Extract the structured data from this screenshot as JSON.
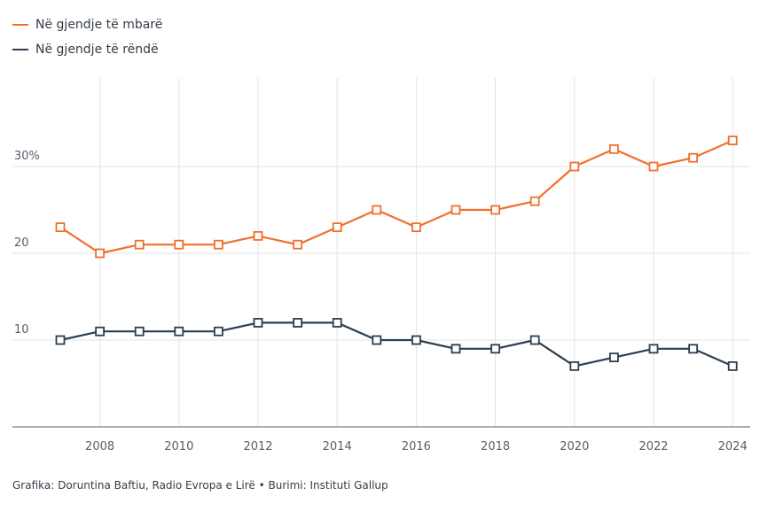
{
  "legend": {
    "items": [
      {
        "label": "Në gjendje të mbarë",
        "color": "#f26f2a"
      },
      {
        "label": "Në gjendje të rëndë",
        "color": "#2d3e4f"
      }
    ]
  },
  "footer": {
    "credit": "Grafika: Doruntina Baftiu, Radio Evropa e Lirë • Burimi: Instituti Gallup"
  },
  "chart_data": {
    "type": "line",
    "title": "",
    "xlabel": "",
    "ylabel": "",
    "x": [
      2007,
      2008,
      2009,
      2010,
      2011,
      2012,
      2013,
      2014,
      2015,
      2016,
      2017,
      2018,
      2019,
      2020,
      2021,
      2022,
      2023,
      2024
    ],
    "xticks": [
      2008,
      2010,
      2012,
      2014,
      2016,
      2018,
      2020,
      2022,
      2024
    ],
    "xtick_labels": [
      "2008",
      "2010",
      "2012",
      "2014",
      "2016",
      "2018",
      "2020",
      "2022",
      "2024"
    ],
    "yticks": [
      10,
      20,
      30
    ],
    "ytick_labels": [
      "10",
      "20",
      "30%"
    ],
    "ylim": [
      0,
      40
    ],
    "xlim": [
      2006,
      2024.5
    ],
    "grid": true,
    "legend_position": "top-left",
    "series": [
      {
        "name": "Në gjendje të mbarë",
        "color": "#f26f2a",
        "values": [
          23,
          20,
          21,
          21,
          21,
          22,
          21,
          23,
          25,
          23,
          25,
          25,
          26,
          30,
          32,
          30,
          31,
          33
        ]
      },
      {
        "name": "Në gjendje të rëndë",
        "color": "#2d3e4f",
        "values": [
          10,
          11,
          11,
          11,
          11,
          12,
          12,
          12,
          10,
          10,
          9,
          9,
          10,
          7,
          8,
          9,
          9,
          7
        ]
      }
    ]
  }
}
